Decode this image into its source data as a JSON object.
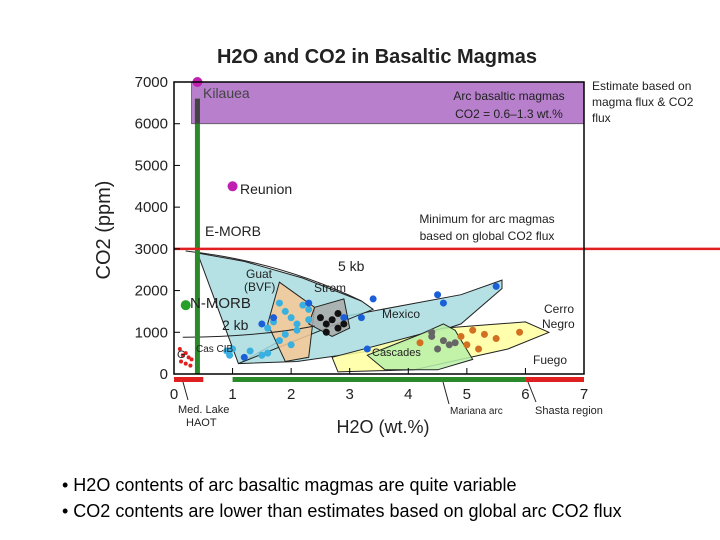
{
  "slide": {
    "bullets": [
      "• H2O contents of arc basaltic magmas are quite variable",
      "• CO2 contents are lower than estimates based on global arc CO2 flux"
    ]
  },
  "colors": {
    "kilauea_band": "#b77fcc",
    "red_line": "#e02020",
    "green_bar": "#2a8a2a",
    "reunion": "#c020b0",
    "nmorb": "#28a028",
    "strom_fill": "#a9a9a9",
    "guat_fill": "#f6c894",
    "mexico_fill": "#a8dce0",
    "fuego_fill": "#ffffa0",
    "cascades_fill": "#b8f0a8",
    "blue_point": "#1a5fd8",
    "black_point": "#111111",
    "orange_point": "#d07020",
    "cyan_point": "#3ab0e0",
    "gray_point": "#666666"
  },
  "chart_data": {
    "type": "scatter",
    "title": "H2O and CO2 in Basaltic Magmas",
    "xlabel": "H2O (wt.%)",
    "ylabel": "CO2 (ppm)",
    "xlim": [
      0,
      7
    ],
    "ylim": [
      0,
      7000
    ],
    "xticks": [
      "0",
      "1",
      "2",
      "3",
      "4",
      "5",
      "6",
      "7"
    ],
    "yticks": [
      "0",
      "1000",
      "2000",
      "3000",
      "4000",
      "5000",
      "6000",
      "7000"
    ],
    "annotations": {
      "kilauea": "Kilauea",
      "reunion": "Reunion",
      "emorb": "E-MORB",
      "nmorb": "N-MORB",
      "guat": "Guat",
      "bvf": "(BVF)",
      "strom": "Strom",
      "mexico": "Mexico",
      "cerro": "Cerro",
      "negro": "Negro",
      "cascades": "Cascades",
      "fuego": "Fuego",
      "cas_cib": "Cas CIB",
      "g": "G",
      "kb5": "5 kb",
      "kb2": "2 kb",
      "med_lake": "Med. Lake",
      "haot": "HAOT",
      "mariana": "Mariana arc",
      "shasta": "Shasta region",
      "arc_line1": "Arc basaltic magmas",
      "arc_line2": "CO2 = 0.6–1.3 wt.%",
      "estimate1": "Estimate based on",
      "estimate2": "magma flux & CO2",
      "estimate3": "flux",
      "minimum1": "Minimum for arc magmas",
      "minimum2": "based on global CO2 flux"
    },
    "kilauea_band": [
      6000,
      7000
    ],
    "red_line_co2": 3000,
    "emorb_bar": {
      "x": 0.4,
      "y": [
        0,
        6600
      ]
    },
    "h2o_bars": [
      {
        "x": [
          0,
          0.5
        ],
        "color": "red"
      },
      {
        "x": [
          1,
          6
        ],
        "color": "green"
      },
      {
        "x": [
          6,
          7
        ],
        "color": "red"
      }
    ],
    "fields": [
      {
        "name": "Mexico",
        "fill": "mexico",
        "points": [
          [
            1.1,
            250
          ],
          [
            2.4,
            1250
          ],
          [
            4.9,
            1900
          ],
          [
            5.6,
            2250
          ],
          [
            5.6,
            2050
          ],
          [
            4.9,
            1200
          ],
          [
            3.6,
            600
          ],
          [
            2.1,
            300
          ]
        ]
      },
      {
        "name": "5 kb",
        "fill": "mexico",
        "points": [
          [
            0.4,
            2900
          ],
          [
            1.2,
            2700
          ],
          [
            2.2,
            2300
          ],
          [
            3.2,
            1750
          ],
          [
            3.4,
            1550
          ],
          [
            1.1,
            250
          ]
        ]
      },
      {
        "name": "Fuego",
        "fill": "fuego",
        "points": [
          [
            2.7,
            400
          ],
          [
            4.6,
            1100
          ],
          [
            6.0,
            1250
          ],
          [
            6.4,
            1000
          ],
          [
            5.7,
            600
          ],
          [
            4.1,
            100
          ],
          [
            2.8,
            50
          ]
        ]
      },
      {
        "name": "Cascades",
        "fill": "cascades",
        "points": [
          [
            3.3,
            450
          ],
          [
            4.2,
            950
          ],
          [
            4.6,
            1200
          ],
          [
            4.8,
            1050
          ],
          [
            5.1,
            350
          ],
          [
            4.5,
            100
          ],
          [
            3.6,
            100
          ]
        ]
      },
      {
        "name": "Guat",
        "fill": "guat",
        "points": [
          [
            1.8,
            2200
          ],
          [
            2.4,
            1600
          ],
          [
            2.3,
            400
          ],
          [
            1.9,
            300
          ],
          [
            1.6,
            1200
          ]
        ]
      },
      {
        "name": "Strom",
        "fill": "strom",
        "points": [
          [
            2.4,
            1600
          ],
          [
            2.9,
            1800
          ],
          [
            3.0,
            1100
          ],
          [
            2.7,
            900
          ],
          [
            2.3,
            1200
          ]
        ]
      }
    ],
    "series": [
      {
        "name": "Kilauea",
        "color": "reunion",
        "x": [
          0.4
        ],
        "y": [
          7000
        ]
      },
      {
        "name": "Reunion",
        "color": "reunion",
        "x": [
          1.0
        ],
        "y": [
          4500
        ]
      },
      {
        "name": "N-MORB",
        "color": "nmorb",
        "x": [
          0.2
        ],
        "y": [
          1650
        ]
      },
      {
        "name": "Guat",
        "color": "cyan",
        "x": [
          1.8,
          1.9,
          2.0,
          1.7,
          2.1,
          2.1,
          1.9,
          2.3,
          2.2,
          2.0,
          1.6,
          2.3,
          1.8
        ],
        "y": [
          1700,
          1500,
          1350,
          1250,
          1200,
          1050,
          950,
          1550,
          1650,
          700,
          1100,
          1300,
          800
        ]
      },
      {
        "name": "Guat blue",
        "color": "blue",
        "x": [
          1.7,
          1.5,
          2.3,
          2.9,
          3.4,
          3.3,
          5.5,
          4.5,
          4.6,
          3.2,
          1.2
        ],
        "y": [
          1350,
          1200,
          1700,
          1350,
          1800,
          600,
          2100,
          1900,
          1700,
          1350,
          400
        ]
      },
      {
        "name": "Strom",
        "color": "black",
        "x": [
          2.6,
          2.7,
          2.9,
          2.8,
          2.6,
          2.5,
          2.8
        ],
        "y": [
          1200,
          1300,
          1200,
          1100,
          1000,
          1350,
          1450
        ]
      },
      {
        "name": "Cascades",
        "color": "gray",
        "x": [
          4.4,
          4.6,
          4.7,
          4.5,
          4.8,
          4.4
        ],
        "y": [
          900,
          800,
          700,
          600,
          750,
          1000
        ]
      },
      {
        "name": "Fuego",
        "color": "orange",
        "x": [
          4.2,
          5.1,
          5.3,
          5.0,
          5.9,
          5.5,
          4.9,
          5.2
        ],
        "y": [
          750,
          1050,
          950,
          700,
          1000,
          850,
          900,
          600
        ]
      },
      {
        "name": "Cas CIB",
        "color": "cyan",
        "x": [
          1.0,
          0.9,
          1.3,
          1.5,
          1.6,
          0.95
        ],
        "y": [
          600,
          550,
          550,
          450,
          500,
          450
        ]
      },
      {
        "name": "Med. Lake",
        "color": "red",
        "x": [
          0.1,
          0.2,
          0.15,
          0.25,
          0.3,
          0.12,
          0.2,
          0.28
        ],
        "y": [
          600,
          500,
          450,
          400,
          350,
          300,
          250,
          200
        ]
      }
    ]
  }
}
